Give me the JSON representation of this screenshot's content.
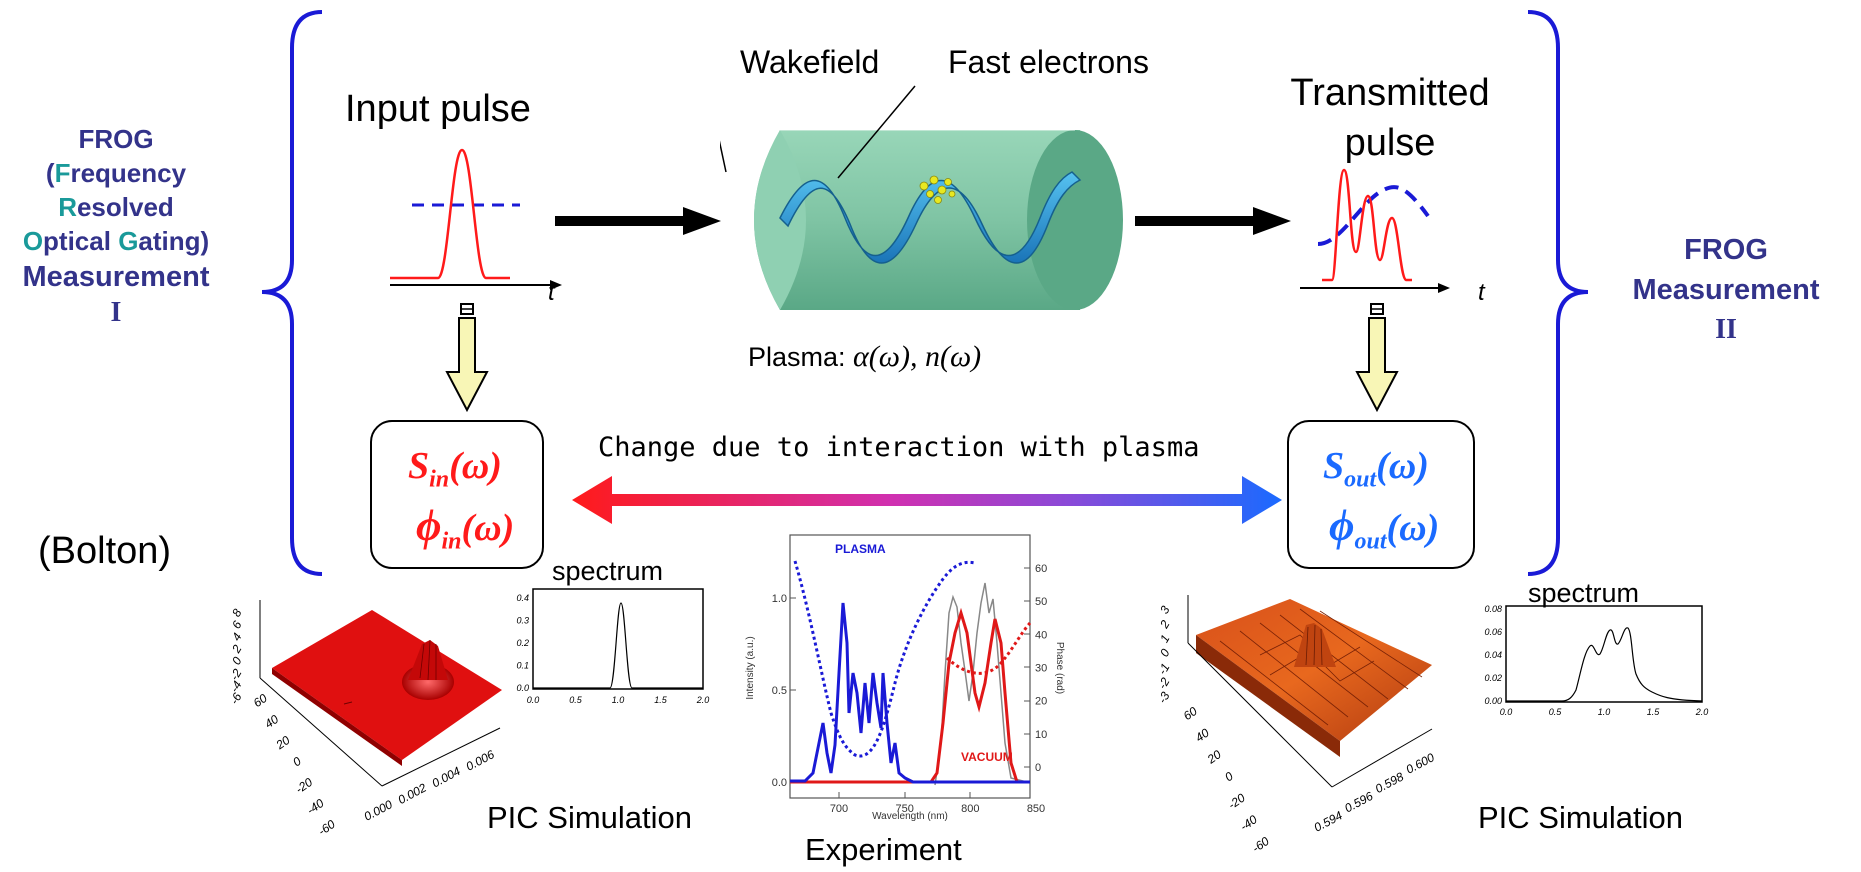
{
  "left": {
    "frog": "FROG",
    "frequency_open": "(",
    "frequency_f": "F",
    "frequency_rest": "requency",
    "resolved_r": "R",
    "resolved_rest": "esolved",
    "optical_o": "O",
    "optical_rest": "ptical ",
    "gating_g": "G",
    "gating_rest": "ating)",
    "measurement": "Measurement",
    "numeral": "I",
    "author": "(Bolton)"
  },
  "right": {
    "frog": "FROG",
    "measurement": "Measurement",
    "numeral": "II"
  },
  "input_pulse": {
    "label": "Input pulse",
    "axis": "t"
  },
  "plasma": {
    "wakefield": "Wakefield",
    "fast_electrons": "Fast electrons",
    "caption_text": "Plasma: ",
    "caption_math": "α(ω), n(ω)"
  },
  "transmitted_pulse": {
    "label_line1": "Transmitted",
    "label_line2": "pulse",
    "axis": "t"
  },
  "change_label": "Change due to interaction with plasma",
  "input_box": {
    "s": "S",
    "s_sub": "in",
    "s_arg": "(ω)",
    "phi": "ϕ",
    "phi_sub": "in",
    "phi_arg": "(ω)"
  },
  "output_box": {
    "s": "S",
    "s_sub": "out",
    "s_arg": "(ω)",
    "phi": "ϕ",
    "phi_sub": "out",
    "phi_arg": "(ω)"
  },
  "pic_left": {
    "caption": "PIC Simulation",
    "z_ticks": [
      "8",
      "6",
      "4",
      "2",
      "0",
      "-2",
      "-4",
      "-6"
    ],
    "y_ticks": [
      "60",
      "40",
      "20",
      "0",
      "-20",
      "-40",
      "-60"
    ],
    "x_ticks": [
      "0.000",
      "0.002",
      "0.004",
      "0.006"
    ],
    "spectrum": {
      "title": "spectrum",
      "y_ticks": [
        "0.4",
        "0.3",
        "0.2",
        "0.1",
        "0.0"
      ],
      "x_ticks": [
        "0.0",
        "0.5",
        "1.0",
        "1.5",
        "2.0"
      ]
    }
  },
  "pic_right": {
    "caption": "PIC Simulation",
    "z_ticks": [
      "3",
      "2",
      "1",
      "0",
      "-1",
      "-2",
      "-3"
    ],
    "y_ticks": [
      "60",
      "40",
      "20",
      "0",
      "-20",
      "-40",
      "-60"
    ],
    "x_ticks": [
      "0.594",
      "0.596",
      "0.598",
      "0.600"
    ],
    "spectrum": {
      "title": "spectrum",
      "y_ticks": [
        "0.08",
        "0.06",
        "0.04",
        "0.02",
        "0.00"
      ],
      "x_ticks": [
        "0.0",
        "0.5",
        "1.0",
        "1.5",
        "2.0"
      ]
    }
  },
  "experiment": {
    "caption": "Experiment",
    "plasma_label": "PLASMA",
    "vacuum_label": "VACUUM",
    "xlabel": "Wavelength (nm)",
    "ylabel_left": "Intensity (a.u.)",
    "ylabel_right": "Phase (rad)",
    "x_ticks": [
      "700",
      "750",
      "800",
      "850"
    ],
    "y_ticks_left": [
      "0.0",
      "0.5",
      "1.0"
    ],
    "y_ticks_right": [
      "0",
      "10",
      "20",
      "30",
      "40",
      "50",
      "60"
    ]
  },
  "colors": {
    "brace": "#1a1ad6",
    "frog": "#33338a",
    "accent_teal": "#1a9a9a",
    "red": "#ff1a1a",
    "blue": "#1a6aff",
    "plasma_green": "#7fc4a4",
    "wave_blue": "#2aa0d8"
  }
}
